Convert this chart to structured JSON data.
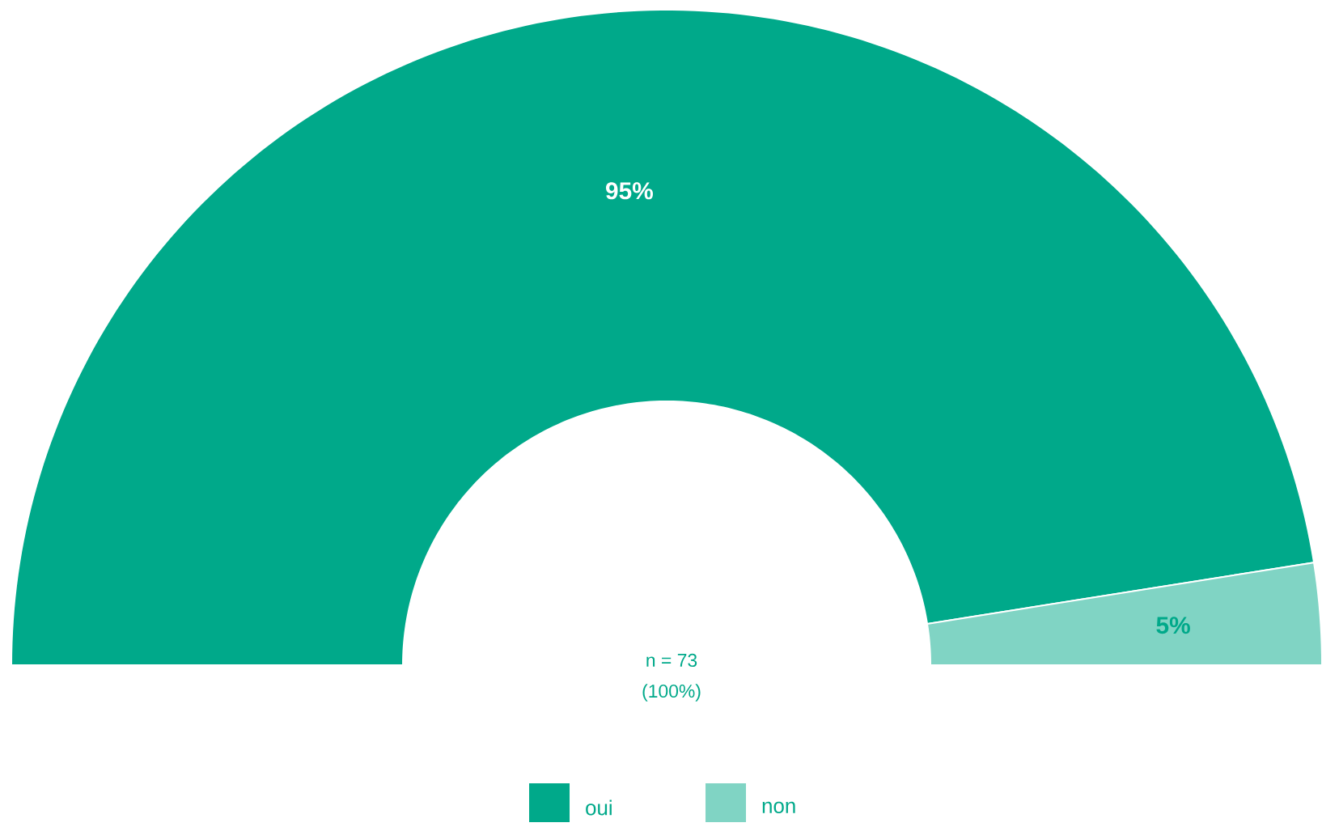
{
  "chart_data": {
    "type": "donut",
    "categories": [
      "oui",
      "non"
    ],
    "values": [
      95,
      5
    ],
    "colors": [
      "#00a98a",
      "#80d4c4"
    ],
    "value_labels": [
      "95%",
      "5%"
    ],
    "annotations": [
      "n = 73",
      "(100%)"
    ],
    "legend": "bottom"
  }
}
